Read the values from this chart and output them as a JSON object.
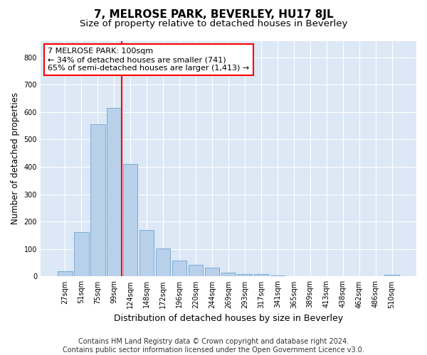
{
  "title": "7, MELROSE PARK, BEVERLEY, HU17 8JL",
  "subtitle": "Size of property relative to detached houses in Beverley",
  "xlabel": "Distribution of detached houses by size in Beverley",
  "ylabel": "Number of detached properties",
  "bar_color": "#b8d0ea",
  "bar_edge_color": "#7aadd4",
  "background_color": "#dce8f5",
  "categories": [
    "27sqm",
    "51sqm",
    "75sqm",
    "99sqm",
    "124sqm",
    "148sqm",
    "172sqm",
    "196sqm",
    "220sqm",
    "244sqm",
    "269sqm",
    "293sqm",
    "317sqm",
    "341sqm",
    "365sqm",
    "389sqm",
    "413sqm",
    "438sqm",
    "462sqm",
    "486sqm",
    "510sqm"
  ],
  "values": [
    18,
    163,
    555,
    615,
    410,
    170,
    103,
    57,
    43,
    32,
    15,
    10,
    9,
    4,
    2,
    1,
    0,
    0,
    0,
    0,
    7
  ],
  "annotation_text": "7 MELROSE PARK: 100sqm\n← 34% of detached houses are smaller (741)\n65% of semi-detached houses are larger (1,413) →",
  "annotation_box_color": "white",
  "annotation_box_edge_color": "red",
  "marker_line_color": "red",
  "marker_line_index": 3,
  "ylim": [
    0,
    860
  ],
  "yticks": [
    0,
    100,
    200,
    300,
    400,
    500,
    600,
    700,
    800
  ],
  "footer_text": "Contains HM Land Registry data © Crown copyright and database right 2024.\nContains public sector information licensed under the Open Government Licence v3.0.",
  "title_fontsize": 11,
  "subtitle_fontsize": 9.5,
  "xlabel_fontsize": 9,
  "ylabel_fontsize": 8.5,
  "tick_fontsize": 7,
  "footer_fontsize": 7,
  "annotation_fontsize": 8
}
